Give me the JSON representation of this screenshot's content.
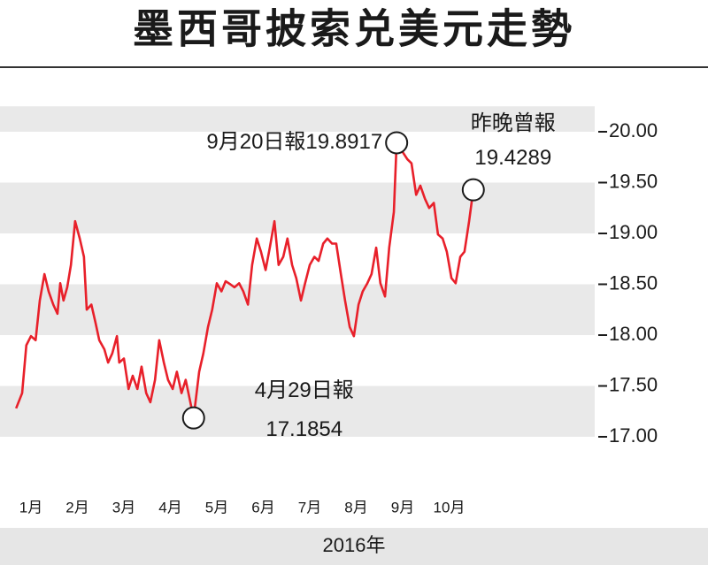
{
  "chart_data": {
    "type": "line",
    "title": "墨西哥披索兑美元走勢",
    "x_label": "2016年",
    "xlim": [
      0.7,
      13.3
    ],
    "xticks": [
      {
        "value": 1,
        "label": "1月"
      },
      {
        "value": 2,
        "label": "2月"
      },
      {
        "value": 3,
        "label": "3月"
      },
      {
        "value": 4,
        "label": "4月"
      },
      {
        "value": 5,
        "label": "5月"
      },
      {
        "value": 6,
        "label": "6月"
      },
      {
        "value": 7,
        "label": "7月"
      },
      {
        "value": 8,
        "label": "8月"
      },
      {
        "value": 9,
        "label": "9月"
      },
      {
        "value": 10,
        "label": "10月"
      }
    ],
    "ylim": [
      17,
      20.25
    ],
    "yticks": [
      {
        "value": 17,
        "label": "17.00"
      },
      {
        "value": 17.5,
        "label": "17.50"
      },
      {
        "value": 18,
        "label": "18.00"
      },
      {
        "value": 18.5,
        "label": "18.50"
      },
      {
        "value": 19,
        "label": "19.00"
      },
      {
        "value": 19.5,
        "label": "19.50"
      },
      {
        "value": 20,
        "label": "20.00"
      }
    ],
    "grid_bands": true,
    "series": [
      {
        "color": "#e8202a",
        "x": [
          0.68,
          0.81,
          0.9,
          1.0,
          1.1,
          1.19,
          1.29,
          1.38,
          1.48,
          1.57,
          1.63,
          1.7,
          1.78,
          1.86,
          1.95,
          2.05,
          2.14,
          2.2,
          2.3,
          2.39,
          2.47,
          2.58,
          2.66,
          2.75,
          2.85,
          2.9,
          3.0,
          3.1,
          3.19,
          3.29,
          3.38,
          3.48,
          3.57,
          3.67,
          3.76,
          3.86,
          3.95,
          4.05,
          4.14,
          4.24,
          4.33,
          4.43,
          4.5,
          4.62,
          4.71,
          4.81,
          4.9,
          5.0,
          5.1,
          5.19,
          5.29,
          5.38,
          5.48,
          5.57,
          5.67,
          5.76,
          5.86,
          5.95,
          6.05,
          6.14,
          6.24,
          6.33,
          6.43,
          6.52,
          6.62,
          6.71,
          6.81,
          6.9,
          7.0,
          7.1,
          7.19,
          7.29,
          7.38,
          7.48,
          7.57,
          7.67,
          7.76,
          7.86,
          7.95,
          8.05,
          8.14,
          8.24,
          8.33,
          8.43,
          8.52,
          8.62,
          8.71,
          8.81,
          8.87,
          9.1,
          9.19,
          9.29,
          9.38,
          9.48,
          9.57,
          9.67,
          9.76,
          9.86,
          9.95,
          10.05,
          10.14,
          10.24,
          10.33,
          10.43,
          10.52
        ],
        "values": [
          17.28,
          17.43,
          17.9,
          17.99,
          17.95,
          18.34,
          18.6,
          18.43,
          18.3,
          18.21,
          18.51,
          18.34,
          18.47,
          18.69,
          19.12,
          18.95,
          18.77,
          18.25,
          18.3,
          18.12,
          17.95,
          17.86,
          17.73,
          17.82,
          17.99,
          17.73,
          17.77,
          17.47,
          17.6,
          17.47,
          17.69,
          17.43,
          17.34,
          17.56,
          17.95,
          17.73,
          17.56,
          17.47,
          17.64,
          17.43,
          17.56,
          17.34,
          17.1854,
          17.64,
          17.82,
          18.08,
          18.25,
          18.51,
          18.43,
          18.53,
          18.5,
          18.47,
          18.51,
          18.43,
          18.3,
          18.69,
          18.95,
          18.82,
          18.64,
          18.86,
          19.12,
          18.69,
          18.77,
          18.95,
          18.69,
          18.56,
          18.34,
          18.51,
          18.69,
          18.77,
          18.73,
          18.9,
          18.95,
          18.9,
          18.9,
          18.6,
          18.34,
          18.08,
          17.99,
          18.3,
          18.43,
          18.51,
          18.6,
          18.86,
          18.51,
          18.38,
          18.86,
          19.21,
          19.8917,
          19.73,
          19.69,
          19.38,
          19.47,
          19.34,
          19.25,
          19.3,
          18.99,
          18.95,
          18.82,
          18.56,
          18.51,
          18.77,
          18.82,
          19.12,
          19.4289
        ]
      }
    ],
    "annotations": [
      {
        "text": [
          "9月20日報19.8917"
        ],
        "x": 8.87,
        "y": 19.8917
      },
      {
        "text": [
          "4月29日報",
          "17.1854"
        ],
        "x": 4.5,
        "y": 17.1854
      },
      {
        "text": [
          "昨晚曾報",
          "19.4289"
        ],
        "x": 10.52,
        "y": 19.4289
      }
    ]
  }
}
